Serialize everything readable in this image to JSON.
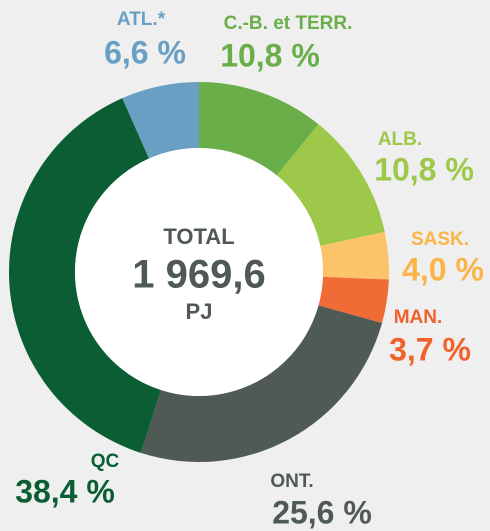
{
  "chart_data": {
    "type": "donut",
    "categories": [
      "C.-B. et TERR.",
      "ALB.",
      "SASK.",
      "MAN.",
      "ONT.",
      "QC",
      "ATL.*"
    ],
    "values": [
      10.8,
      10.8,
      4.0,
      3.7,
      25.6,
      38.4,
      6.6
    ],
    "value_labels": [
      "10,8 %",
      "10,8 %",
      "4,0 %",
      "3,7 %",
      "25,6 %",
      "38,4 %",
      "6,6 %"
    ],
    "colors": [
      "#6aae4a",
      "#9dc84a",
      "#fdc36b",
      "#f06b36",
      "#4f5a55",
      "#0b5e34",
      "#6a9fc4"
    ],
    "label_colors": [
      "#6aae4a",
      "#9dc84a",
      "#fbb445",
      "#f0612b",
      "#4f5a55",
      "#0b5e34",
      "#6a9fc4"
    ],
    "center_text": [
      "TOTAL",
      "1 969,6",
      "PJ"
    ]
  }
}
